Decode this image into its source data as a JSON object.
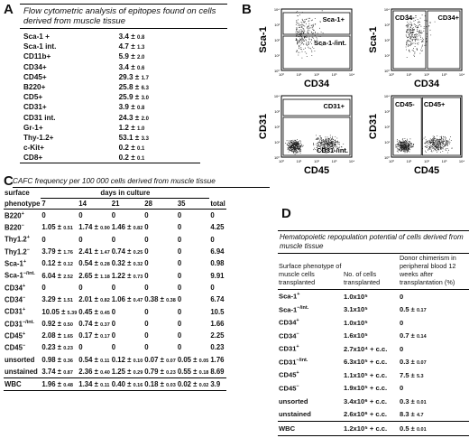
{
  "panel_letters": {
    "a": "A",
    "b": "B",
    "c": "C",
    "d": "D"
  },
  "panelA": {
    "title": "Flow cytometric analysis of epitopes found on cells derived from muscle tissue",
    "rows": [
      {
        "label": "Sca-1 +",
        "value": "3.4 ± ",
        "sd": "0.8"
      },
      {
        "label": "Sca-1 int.",
        "value": "4.7 ± ",
        "sd": "1.3"
      },
      {
        "label": "CD11b+",
        "value": "5.9 ± ",
        "sd": "2.0"
      },
      {
        "label": "CD34+",
        "value": "3.4 ± ",
        "sd": "0.6"
      },
      {
        "label": "CD45+",
        "value": "29.3 ± ",
        "sd": "1.7"
      },
      {
        "label": "B220+",
        "value": "25.8 ± ",
        "sd": "6.3"
      },
      {
        "label": "CD5+",
        "value": "25.9 ± ",
        "sd": "3.0"
      },
      {
        "label": "CD31+",
        "value": "3.9 ± ",
        "sd": "0.8"
      },
      {
        "label": "CD31 int.",
        "value": "24.3 ± ",
        "sd": "2.0"
      },
      {
        "label": "Gr-1+",
        "value": "1.2 ± ",
        "sd": "1.0"
      },
      {
        "label": "Thy-1.2+",
        "value": "53.1 ± ",
        "sd": "3.3"
      },
      {
        "label": "c-Kit+",
        "value": "0.2 ± ",
        "sd": "0.1"
      },
      {
        "label": "CD8+",
        "value": "0.2 ± ",
        "sd": "0.1"
      }
    ]
  },
  "panelB": {
    "plots": [
      {
        "ylabel": "Sca-1",
        "xlabel": "CD34",
        "gate1": "Sca-1+",
        "gate2": "Sca-1-/int."
      },
      {
        "ylabel": "Sca-1",
        "xlabel": "CD34",
        "gate1": "CD34-",
        "gate2": "CD34+"
      },
      {
        "ylabel": "CD31",
        "xlabel": "CD45",
        "gate1": "CD31+",
        "gate2": "CD31-/int."
      },
      {
        "ylabel": "CD31",
        "xlabel": "CD45",
        "gate1": "CD45-",
        "gate2": "CD45+"
      }
    ],
    "ticks": [
      "10⁴",
      "10³",
      "10²",
      "10¹",
      "10⁰"
    ],
    "xticks": [
      "10⁰",
      "10¹",
      "10²",
      "10³",
      "10⁴"
    ]
  },
  "panelC": {
    "title": "CAFC frequency per 100 000 cells derived from muscle tissue",
    "col_head": "surface phenotype",
    "days_head": "days in culture",
    "days": [
      "7",
      "14",
      "21",
      "28",
      "35"
    ],
    "total_head": "total",
    "rows": [
      {
        "label": "B220+",
        "cells": [
          [
            "0",
            ""
          ],
          [
            "0",
            ""
          ],
          [
            "0",
            ""
          ],
          [
            "0",
            ""
          ],
          [
            "0",
            ""
          ]
        ],
        "total": "0"
      },
      {
        "label": "B220-",
        "cells": [
          [
            "1.05 ± ",
            "0.51"
          ],
          [
            "1.74 ± ",
            "0.90"
          ],
          [
            "1.46 ± ",
            "0.82"
          ],
          [
            "0",
            ""
          ],
          [
            "0",
            ""
          ]
        ],
        "total": "4.25"
      },
      {
        "label": "Thy1.2+",
        "cells": [
          [
            "0",
            ""
          ],
          [
            "0",
            ""
          ],
          [
            "0",
            ""
          ],
          [
            "0",
            ""
          ],
          [
            "0",
            ""
          ]
        ],
        "total": "0"
      },
      {
        "label": "Thy1.2-",
        "cells": [
          [
            "3.79 ± ",
            "1.76"
          ],
          [
            "2.41 ± ",
            "1.47"
          ],
          [
            "0.74 ± ",
            "0.25"
          ],
          [
            "0",
            ""
          ],
          [
            "0",
            ""
          ]
        ],
        "total": "6.94"
      },
      {
        "label": "Sca-1+",
        "cells": [
          [
            "0.12 ± ",
            "0.12"
          ],
          [
            "0.54 ± ",
            "0.28"
          ],
          [
            "0.32 ± ",
            "0.32"
          ],
          [
            "0",
            ""
          ],
          [
            "0",
            ""
          ]
        ],
        "total": "0.98"
      },
      {
        "label": "Sca-1-/int.",
        "cells": [
          [
            "6.04 ± ",
            "2.52"
          ],
          [
            "2.65 ± ",
            "1.18"
          ],
          [
            "1.22 ± ",
            "0.73"
          ],
          [
            "0",
            ""
          ],
          [
            "0",
            ""
          ]
        ],
        "total": "9.91"
      },
      {
        "label": "CD34+",
        "cells": [
          [
            "0",
            ""
          ],
          [
            "0",
            ""
          ],
          [
            "0",
            ""
          ],
          [
            "0",
            ""
          ],
          [
            "0",
            ""
          ]
        ],
        "total": "0"
      },
      {
        "label": "CD34-",
        "cells": [
          [
            "3.29 ± ",
            "1.51"
          ],
          [
            "2.01 ± ",
            "0.82"
          ],
          [
            "1.06 ± ",
            "0.47"
          ],
          [
            "0.38 ± ",
            "0.38"
          ],
          [
            "0",
            ""
          ]
        ],
        "total": "6.74"
      },
      {
        "label": "CD31+",
        "cells": [
          [
            "10.05 ± ",
            "5.39"
          ],
          [
            "0.45 ± ",
            "0.45"
          ],
          [
            "0",
            ""
          ],
          [
            "0",
            ""
          ],
          [
            "0",
            ""
          ]
        ],
        "total": "10.5"
      },
      {
        "label": "CD31-/int.",
        "cells": [
          [
            "0.92 ± ",
            "0.50"
          ],
          [
            "0.74 ± ",
            "0.37"
          ],
          [
            "0",
            ""
          ],
          [
            "0",
            ""
          ],
          [
            "0",
            ""
          ]
        ],
        "total": "1.66"
      },
      {
        "label": "CD45+",
        "cells": [
          [
            "2.08 ± ",
            "1.65"
          ],
          [
            "0.17 ± ",
            "0.17"
          ],
          [
            "0",
            ""
          ],
          [
            "0",
            ""
          ],
          [
            "0",
            ""
          ]
        ],
        "total": "2.25"
      },
      {
        "label": "CD45-",
        "cells": [
          [
            "0.23 ± ",
            "0.23"
          ],
          [
            "0",
            ""
          ],
          [
            "0",
            ""
          ],
          [
            "0",
            ""
          ],
          [
            "0",
            ""
          ]
        ],
        "total": "0.23"
      },
      {
        "label": "unsorted",
        "cells": [
          [
            "0.98 ± ",
            "0.36"
          ],
          [
            "0.54 ± ",
            "0.11"
          ],
          [
            "0.12 ± ",
            "0.10"
          ],
          [
            "0.07 ± ",
            "0.07"
          ],
          [
            "0.05 ± ",
            "0.05"
          ]
        ],
        "total": "1.76"
      },
      {
        "label": "unstained",
        "cells": [
          [
            "3.74 ± ",
            "0.87"
          ],
          [
            "2.36 ± ",
            "0.40"
          ],
          [
            "1.25 ± ",
            "0.29"
          ],
          [
            "0.79 ± ",
            "0.23"
          ],
          [
            "0.55 ± ",
            "0.18"
          ]
        ],
        "total": "8.69"
      },
      {
        "label": "WBC",
        "cells": [
          [
            "1.96 ± ",
            "0.48"
          ],
          [
            "1.34 ± ",
            "0.11"
          ],
          [
            "0.40 ± ",
            "0.16"
          ],
          [
            "0.18 ± ",
            "0.03"
          ],
          [
            "0.02 ± ",
            "0.02"
          ]
        ],
        "total": "3.9"
      }
    ]
  },
  "panelD": {
    "title": "Hematopoietic repopulation potential of cells derived from muscle tissue",
    "head1": "Surface phenotype of muscle cells transplanted",
    "head2": "No. of cells transplanted",
    "head3": "Donor chimerism in peripheral blood 12 weeks after transplantation (%)",
    "rows": [
      {
        "label": "Sca-1+",
        "cells": "1.0x10⁵",
        "chim": "0",
        "sd": ""
      },
      {
        "label": "Sca-1-/int.",
        "cells": "3.1x10⁵",
        "chim": "0.5 ± ",
        "sd": "0.17"
      },
      {
        "label": "CD34+",
        "cells": "1.0x10⁵",
        "chim": "0",
        "sd": ""
      },
      {
        "label": "CD34-",
        "cells": "1.6x10⁵",
        "chim": "0.7 ± ",
        "sd": "0.14"
      },
      {
        "label": "CD31+",
        "cells": "2.7x10⁴ + c.c.",
        "chim": "0",
        "sd": ""
      },
      {
        "label": "CD31-/int.",
        "cells": "6.3x10⁵ + c.c.",
        "chim": "0.3 ± ",
        "sd": "0.07"
      },
      {
        "label": "CD45+",
        "cells": "1.1x10⁵ + c.c.",
        "chim": "7.5 ± ",
        "sd": "5.3"
      },
      {
        "label": "CD45-",
        "cells": "1.9x10⁵ + c.c.",
        "chim": "0",
        "sd": ""
      },
      {
        "label": "unsorted",
        "cells": "3.4x10⁶ + c.c.",
        "chim": "0.3 ± ",
        "sd": "0.01"
      },
      {
        "label": "unstained",
        "cells": "2.6x10⁶ + c.c.",
        "chim": "8.3 ± ",
        "sd": "4.7"
      },
      {
        "label": "WBC",
        "cells": "1.2x10⁵ + c.c.",
        "chim": "0.5 ± ",
        "sd": "0.01"
      }
    ]
  }
}
